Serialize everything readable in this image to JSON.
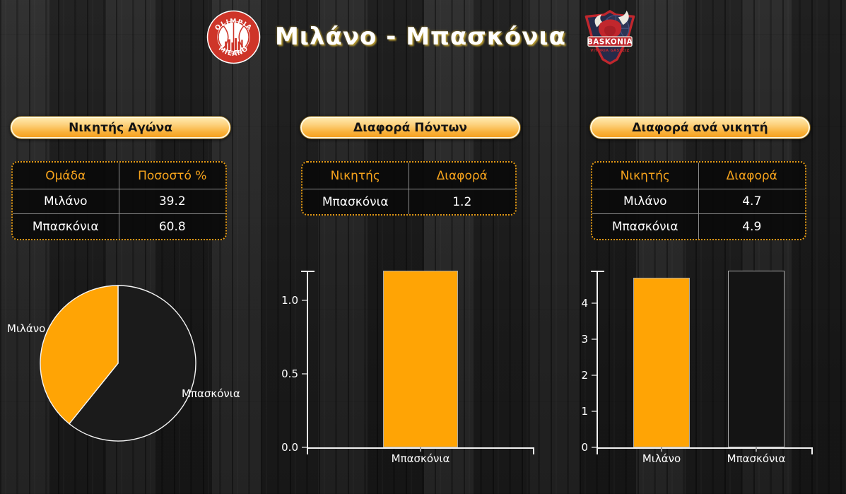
{
  "header": {
    "title": "Μιλάνο - Μπασκόνια",
    "home_logo": {
      "name": "Olimpia Milano",
      "primary": "OLIMPIA",
      "secondary": "MILANO"
    },
    "away_logo": {
      "name": "Baskonia",
      "primary": "BASKONIA",
      "secondary": "VITORIA GASTEIZ"
    }
  },
  "panels": [
    {
      "title": "Νικητής Αγώνα",
      "table": {
        "headers": [
          "Ομάδα",
          "Ποσοστό %"
        ],
        "rows": [
          [
            "Μιλάνο",
            "39.2"
          ],
          [
            "Μπασκόνια",
            "60.8"
          ]
        ]
      }
    },
    {
      "title": "Διαφορά Πόντων",
      "table": {
        "headers": [
          "Νικητής",
          "Διαφορά"
        ],
        "rows": [
          [
            "Μπασκόνια",
            "1.2"
          ]
        ]
      }
    },
    {
      "title": "Διαφορά ανά νικητή",
      "table": {
        "headers": [
          "Νικητής",
          "Διαφορά"
        ],
        "rows": [
          [
            "Μιλάνο",
            "4.7"
          ],
          [
            "Μπασκόνια",
            "4.9"
          ]
        ]
      }
    }
  ],
  "chart_data": [
    {
      "type": "pie",
      "title": "Νικητής Αγώνα",
      "slices": [
        {
          "label": "Μπασκόνια",
          "value": 60.8,
          "color": "#1b1b1b"
        },
        {
          "label": "Μιλάνο",
          "value": 39.2,
          "color": "#FFA405"
        }
      ],
      "start_angle_deg": 0,
      "direction": "clockwise",
      "outline_color": "#f5f5f5"
    },
    {
      "type": "bar",
      "title": "Διαφορά Πόντων",
      "categories": [
        "Μπασκόνια"
      ],
      "values": [
        1.2
      ],
      "colors": [
        "#FFA405"
      ],
      "ymax": 1.2,
      "ytick_values": [
        0,
        0.5,
        1
      ],
      "ytick_labels": [
        "0.0",
        "0.5",
        "1.0"
      ],
      "grid": false,
      "legend": "none"
    },
    {
      "type": "bar",
      "title": "Διαφορά ανά νικητή",
      "categories": [
        "Μιλάνο",
        "Μπασκόνια"
      ],
      "values": [
        4.7,
        4.9
      ],
      "colors": [
        "#FFA405",
        "#141414"
      ],
      "ymax": 4.9,
      "ytick_values": [
        0,
        1,
        2,
        3,
        4
      ],
      "ytick_labels": [
        "0",
        "1",
        "2",
        "3",
        "4"
      ],
      "grid": false,
      "legend": "none"
    }
  ],
  "colors": {
    "accent_orange": "#F7A41C",
    "bar_orange": "#FFA405",
    "bar_black": "#141414",
    "axis": "#F2F2F2",
    "table_border": "#E39A16"
  }
}
